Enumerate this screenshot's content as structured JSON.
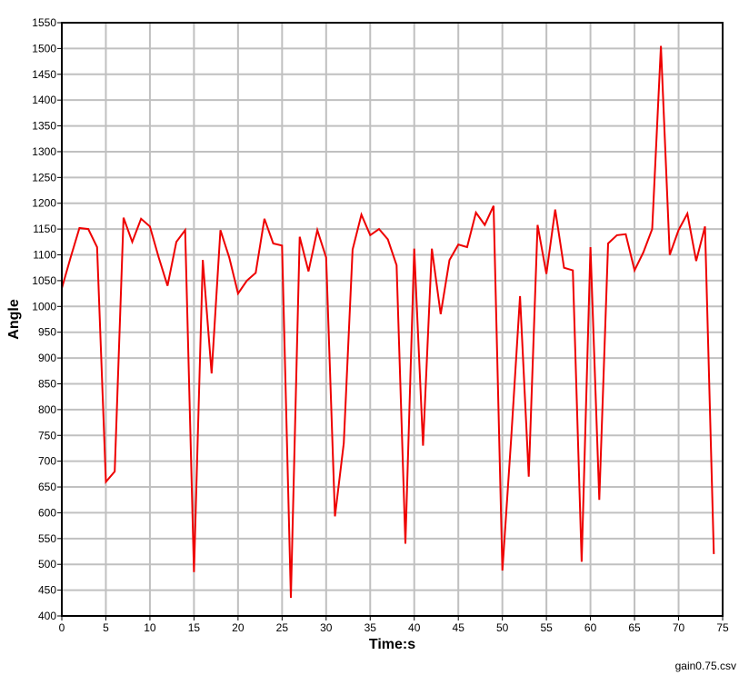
{
  "chart_data": {
    "type": "line",
    "title": "",
    "xlabel": "Time:s",
    "ylabel": "Angle",
    "xlim": [
      0,
      75
    ],
    "ylim": [
      400,
      1550
    ],
    "x_ticks": [
      0,
      5,
      10,
      15,
      20,
      25,
      30,
      35,
      40,
      45,
      50,
      55,
      60,
      65,
      70,
      75
    ],
    "y_ticks": [
      400,
      450,
      500,
      550,
      600,
      650,
      700,
      750,
      800,
      850,
      900,
      950,
      1000,
      1050,
      1100,
      1150,
      1200,
      1250,
      1300,
      1350,
      1400,
      1450,
      1500,
      1550
    ],
    "grid": true,
    "legend": "none",
    "source_file": "gain0.75.csv",
    "colors": {
      "line": "#ee0000",
      "grid": "#c0c0c0",
      "frame": "#000000"
    },
    "series": [
      {
        "x": [
          0,
          1,
          2,
          3,
          4,
          5,
          6,
          7,
          8,
          9,
          10,
          11,
          12,
          13,
          14,
          15,
          16,
          17,
          18,
          19,
          20,
          21,
          22,
          23,
          24,
          25,
          26,
          27,
          28,
          29,
          30,
          31,
          32,
          33,
          34,
          35,
          36,
          37,
          38,
          39,
          40,
          41,
          42,
          43,
          44,
          45,
          46,
          47,
          48,
          49,
          50,
          51,
          52,
          53,
          54,
          55,
          56,
          57,
          58,
          59,
          60,
          61,
          62,
          63,
          64,
          65,
          66,
          67,
          68,
          69,
          70,
          71,
          72,
          73,
          74
        ],
        "y": [
          1035,
          1095,
          1152,
          1150,
          1115,
          660,
          680,
          1172,
          1125,
          1170,
          1155,
          1095,
          1040,
          1125,
          1148,
          485,
          1090,
          870,
          1148,
          1095,
          1025,
          1050,
          1065,
          1170,
          1122,
          1118,
          435,
          1135,
          1068,
          1148,
          1095,
          593,
          735,
          1110,
          1178,
          1138,
          1150,
          1130,
          1080,
          540,
          1112,
          730,
          1112,
          985,
          1090,
          1120,
          1115,
          1182,
          1158,
          1195,
          488,
          745,
          1020,
          670,
          1158,
          1063,
          1188,
          1075,
          1070,
          505,
          1115,
          625,
          1122,
          1138,
          1140,
          1070,
          1105,
          1150,
          1505,
          1100,
          1148,
          1180,
          1088,
          1155,
          520
        ]
      }
    ]
  }
}
